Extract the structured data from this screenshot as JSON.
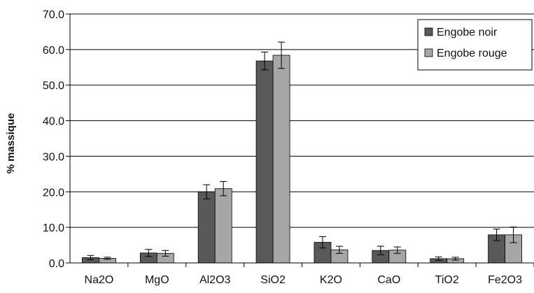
{
  "chart_data": {
    "type": "bar",
    "categories": [
      "Na2O",
      "MgO",
      "Al2O3",
      "SiO2",
      "K2O",
      "CaO",
      "TiO2",
      "Fe2O3"
    ],
    "series": [
      {
        "name": "Engobe noir",
        "color": "#595959",
        "values": [
          1.5,
          2.8,
          20.0,
          56.8,
          5.8,
          3.5,
          1.2,
          7.9
        ],
        "errors": [
          0.6,
          1.0,
          2.0,
          2.5,
          1.6,
          1.2,
          0.5,
          1.6
        ]
      },
      {
        "name": "Engobe rouge",
        "color": "#a6a6a6",
        "values": [
          1.3,
          2.7,
          20.9,
          58.4,
          3.7,
          3.6,
          1.2,
          7.9
        ],
        "errors": [
          0.3,
          0.8,
          2.0,
          3.7,
          1.0,
          0.9,
          0.4,
          2.2
        ]
      }
    ],
    "ylabel": "% massique",
    "xlabel": "",
    "ylim": [
      0,
      70
    ],
    "yticks": [
      "0.0",
      "10.0",
      "20.0",
      "30.0",
      "40.0",
      "50.0",
      "60.0",
      "70.0"
    ],
    "grid": true,
    "legend_position": "top-right"
  }
}
